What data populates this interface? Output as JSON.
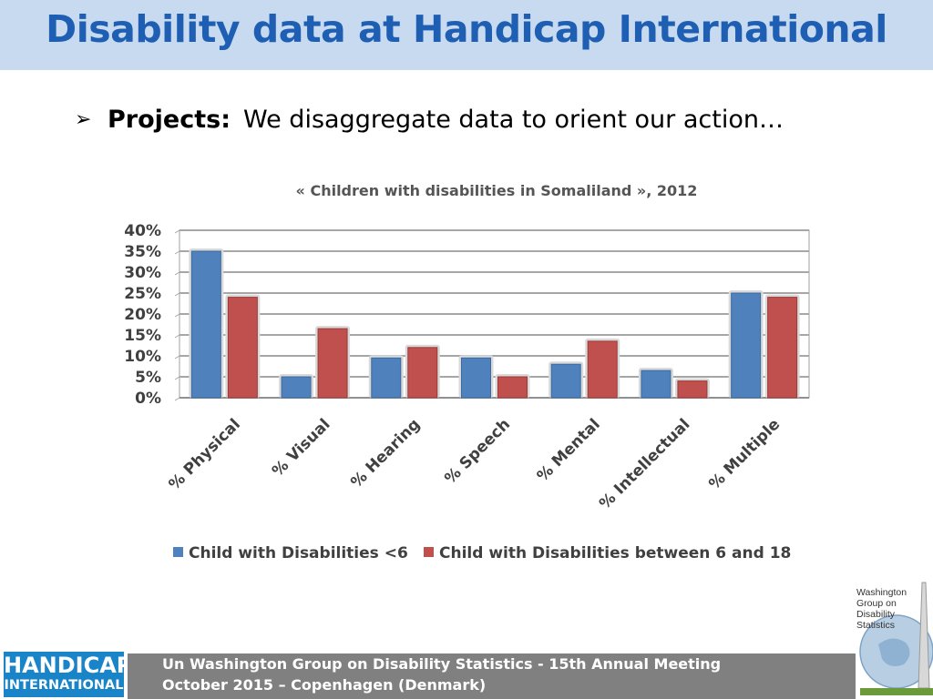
{
  "header": {
    "title": "Disability data at Handicap International"
  },
  "bullet": {
    "label": "Projects:",
    "text": "We disaggregate data to orient our action…"
  },
  "chart_title": "« Children with disabilities in Somaliland », 2012",
  "chart_data": {
    "type": "bar",
    "title": "« Children with disabilities in Somaliland », 2012",
    "categories": [
      "% Physical",
      "% Visual",
      "% Hearing",
      "% Speech",
      "% Mental",
      "% Intellectual",
      "% Multiple"
    ],
    "series": [
      {
        "name": "Child with Disabilities <6",
        "color": "#4f81bd",
        "values": [
          35,
          5,
          9.5,
          9.5,
          8,
          6.5,
          25
        ]
      },
      {
        "name": "Child with Disabilities between 6 and 18",
        "color": "#c0504d",
        "values": [
          24,
          16.5,
          12,
          5,
          13.5,
          4,
          24
        ]
      }
    ],
    "yticks": [
      "0%",
      "5%",
      "10%",
      "15%",
      "20%",
      "25%",
      "30%",
      "35%",
      "40%"
    ],
    "ylim": [
      0,
      40
    ],
    "xlabel": "",
    "ylabel": "",
    "grid": true,
    "legend": "bottom"
  },
  "footer": {
    "line1": "Un Washington Group on Disability Statistics - 15th Annual Meeting",
    "line2": "October 2015 – Copenhagen (Denmark)"
  },
  "logo_hi": {
    "line1": "HANDICAP",
    "line2": "INTERNATIONAL"
  },
  "logo_wg": {
    "line1": "Washington",
    "line2": "Group on",
    "line3": "Disability",
    "line4": "Statistics"
  }
}
